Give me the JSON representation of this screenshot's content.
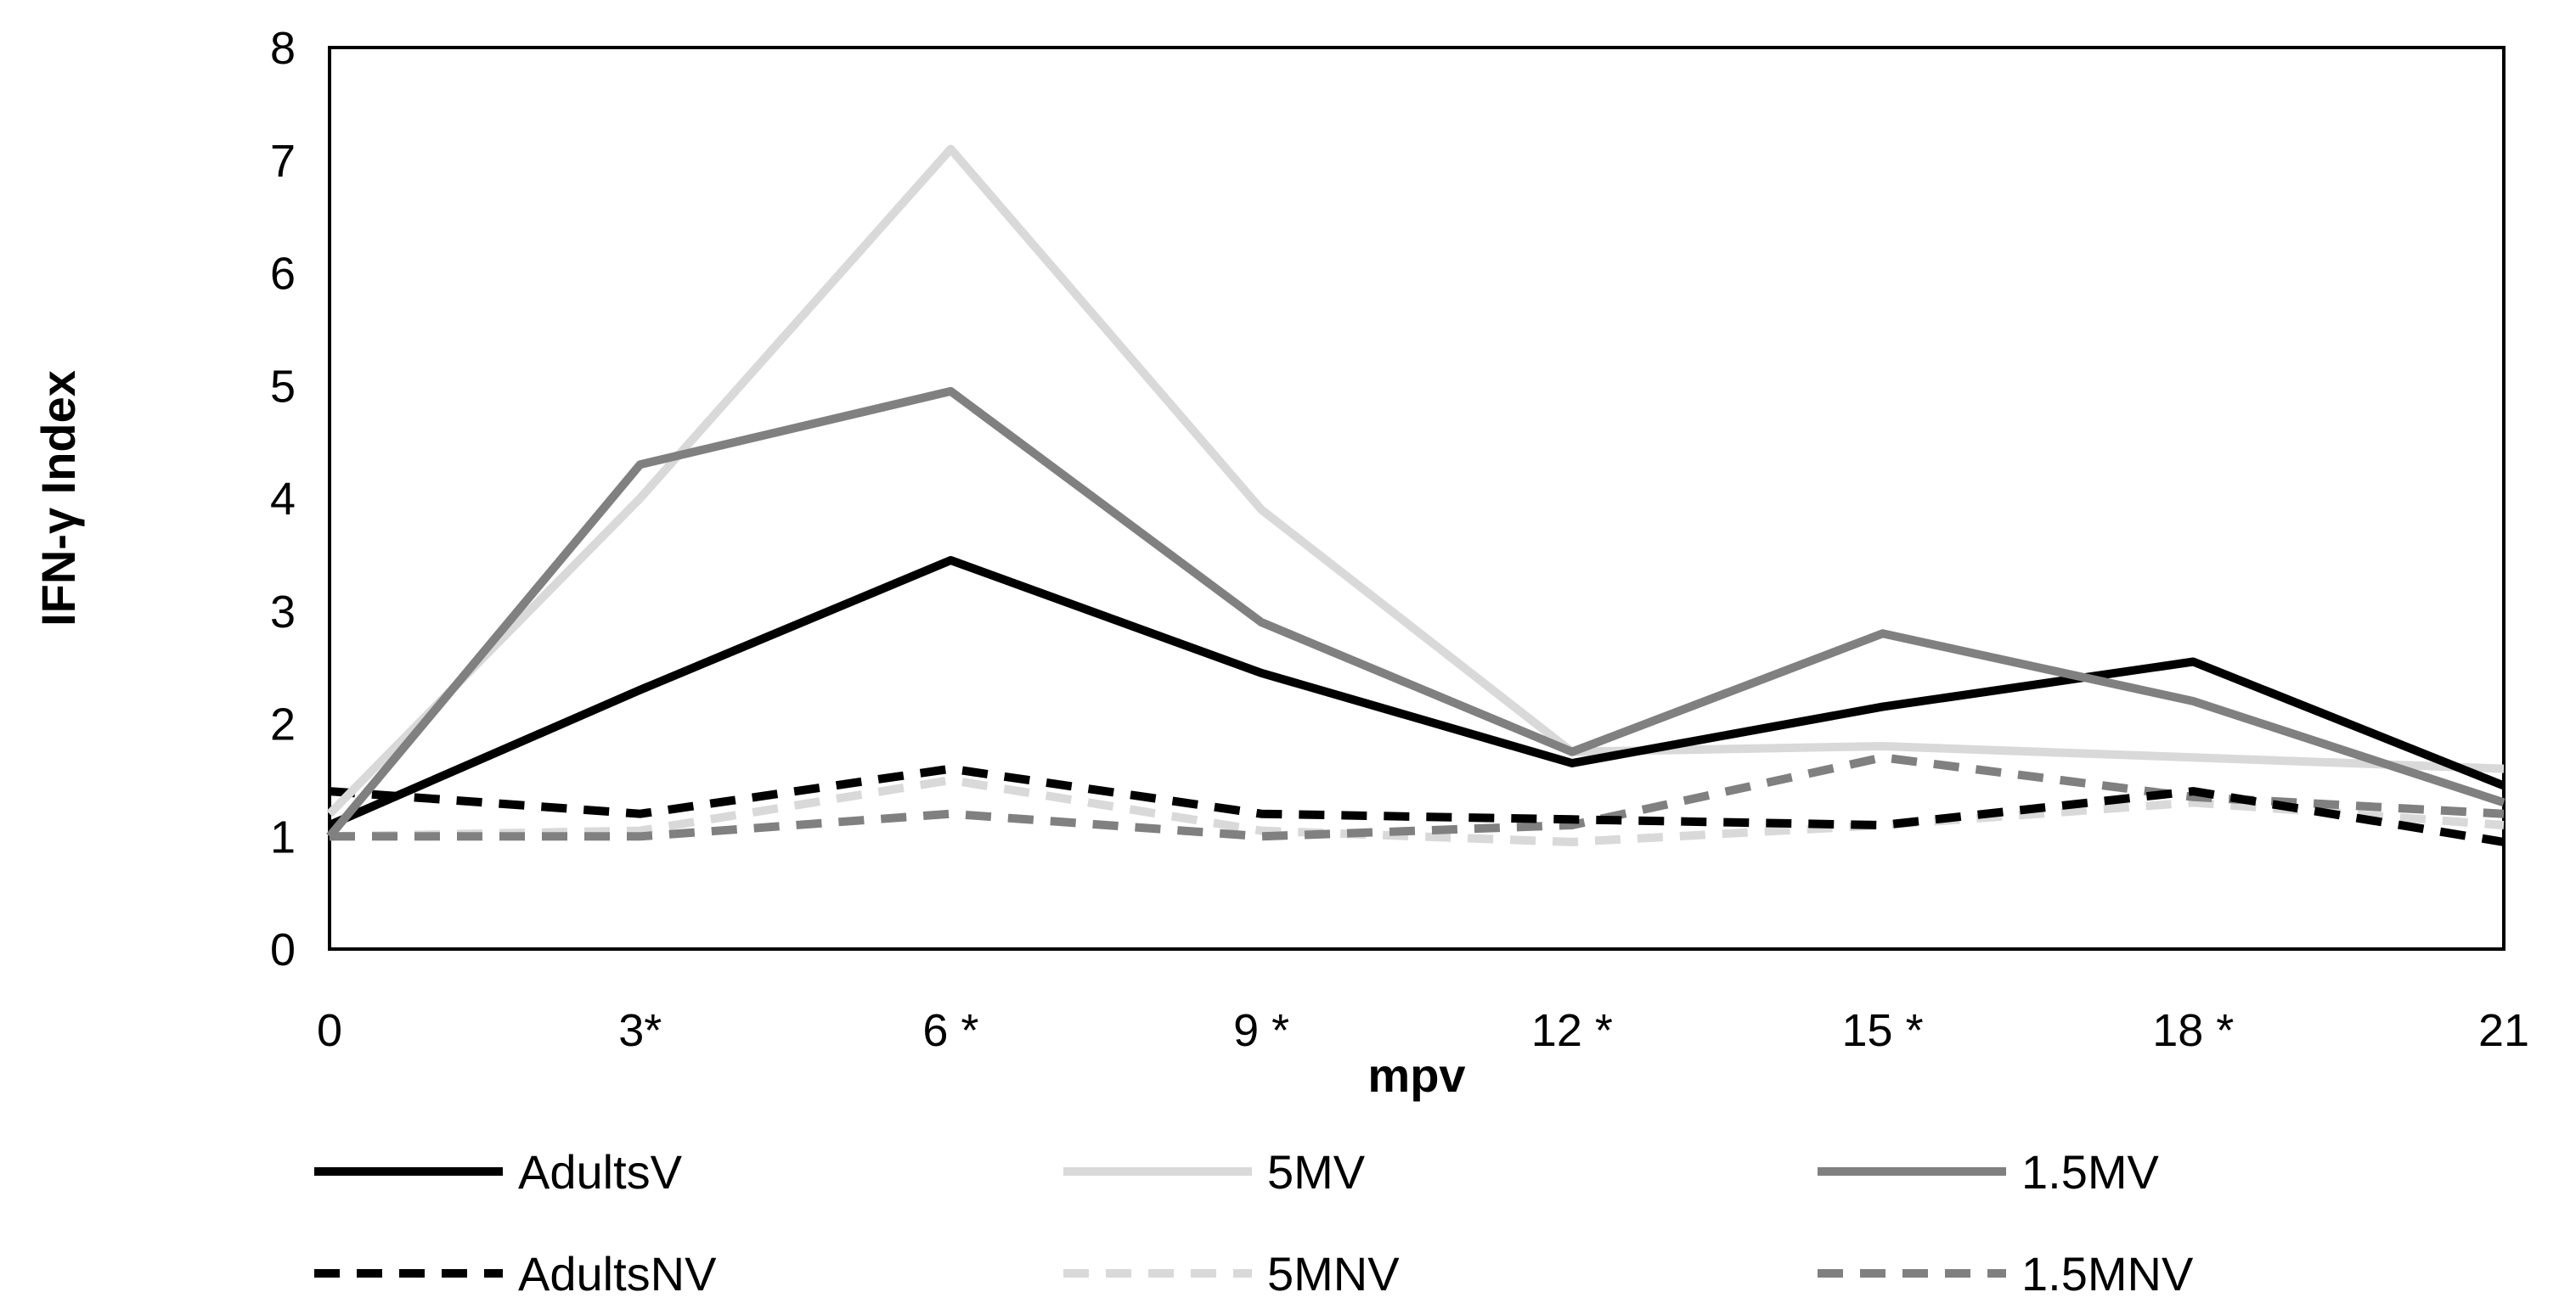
{
  "chart_data": {
    "type": "line",
    "title": "",
    "xlabel": "mpv",
    "ylabel": "IFN-γ Index",
    "x": [
      0,
      3,
      6,
      9,
      12,
      15,
      18,
      21
    ],
    "x_tick_labels": [
      "0",
      "3*",
      "6 *",
      "9 *",
      "12 *",
      "15 *",
      "18 *",
      "21"
    ],
    "y_tick_labels": [
      "0",
      "1",
      "2",
      "3",
      "4",
      "5",
      "6",
      "7",
      "8"
    ],
    "ylim": [
      0,
      8
    ],
    "grid": false,
    "legend_position": "bottom",
    "series": [
      {
        "name": "AdultsV",
        "values": [
          1.1,
          2.3,
          3.45,
          2.45,
          1.65,
          2.15,
          2.55,
          1.45
        ],
        "color": "#000000",
        "dash": "solid"
      },
      {
        "name": "5MV",
        "values": [
          1.2,
          4.0,
          7.1,
          3.9,
          1.75,
          1.8,
          1.7,
          1.6
        ],
        "color": "#d9d9d9",
        "dash": "solid"
      },
      {
        "name": "1.5MV",
        "values": [
          1.0,
          4.3,
          4.95,
          2.9,
          1.75,
          2.8,
          2.2,
          1.3
        ],
        "color": "#808080",
        "dash": "solid"
      },
      {
        "name": "AdultsNV",
        "values": [
          1.4,
          1.2,
          1.6,
          1.2,
          1.15,
          1.1,
          1.4,
          0.95
        ],
        "color": "#000000",
        "dash": "dashed"
      },
      {
        "name": "5MNV",
        "values": [
          1.0,
          1.05,
          1.5,
          1.05,
          0.95,
          1.1,
          1.3,
          1.1
        ],
        "color": "#d9d9d9",
        "dash": "dashed"
      },
      {
        "name": "1.5MNV",
        "values": [
          1.0,
          1.0,
          1.2,
          1.0,
          1.1,
          1.7,
          1.35,
          1.2
        ],
        "color": "#808080",
        "dash": "dashed"
      }
    ]
  }
}
